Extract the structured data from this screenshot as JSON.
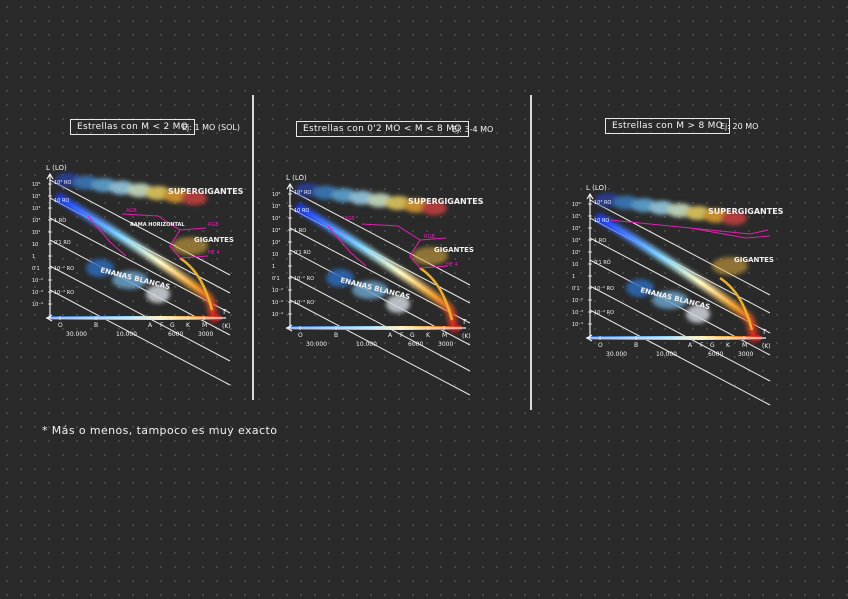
{
  "panels": [
    {
      "title": "Estrellas con M < 2 MO",
      "example": "Ej: 1 MO (SOL)",
      "region_labels": [
        "SUPERGIGANTES",
        "GIGANTES",
        "ENANAS BLANCAS"
      ],
      "annotations": [
        "RAMA HORIZONTAL",
        "RGB",
        "AGB",
        "HE 4"
      ]
    },
    {
      "title": "Estrellas con 0'2 MO < M < 8 MO",
      "example": "Ej: 3-4 MO",
      "region_labels": [
        "SUPERGIGANTES",
        "GIGANTES",
        "ENANAS BLANCAS"
      ],
      "annotations": [
        "RGB",
        "AGB",
        "HE 4"
      ]
    },
    {
      "title": "Estrellas con M > 8 MO",
      "example": "Ej: 20 MO",
      "region_labels": [
        "SUPERGIGANTES",
        "GIGANTES",
        "ENANAS BLANCAS"
      ],
      "annotations": []
    }
  ],
  "axes": {
    "y_label": "L (LO)",
    "x_label": "T",
    "x_unit": "(K)",
    "y_ticks": [
      "10⁶",
      "10⁵",
      "10⁴",
      "10³",
      "10²",
      "10",
      "1",
      "0'1",
      "10⁻²",
      "10⁻³",
      "10⁻⁴"
    ],
    "spectral_classes": [
      "O",
      "B",
      "A",
      "F",
      "G",
      "K",
      "M"
    ],
    "temperatures": [
      "30.000",
      "10.000",
      "6000",
      "3000"
    ],
    "radius_lines": [
      "10³ RO",
      "10 RO",
      "1 RO",
      "0'1 RO",
      "10⁻² RO",
      "10⁻³ RO"
    ]
  },
  "colors": {
    "background": "#2a2a2a",
    "ink": "#f2f2f2",
    "annotation": "#e020b0",
    "track": "#e8b030",
    "red_end": "#c82020",
    "blue_seq": "#2a62c8"
  },
  "footnote": "* Más o menos, tampoco es muy exacto"
}
